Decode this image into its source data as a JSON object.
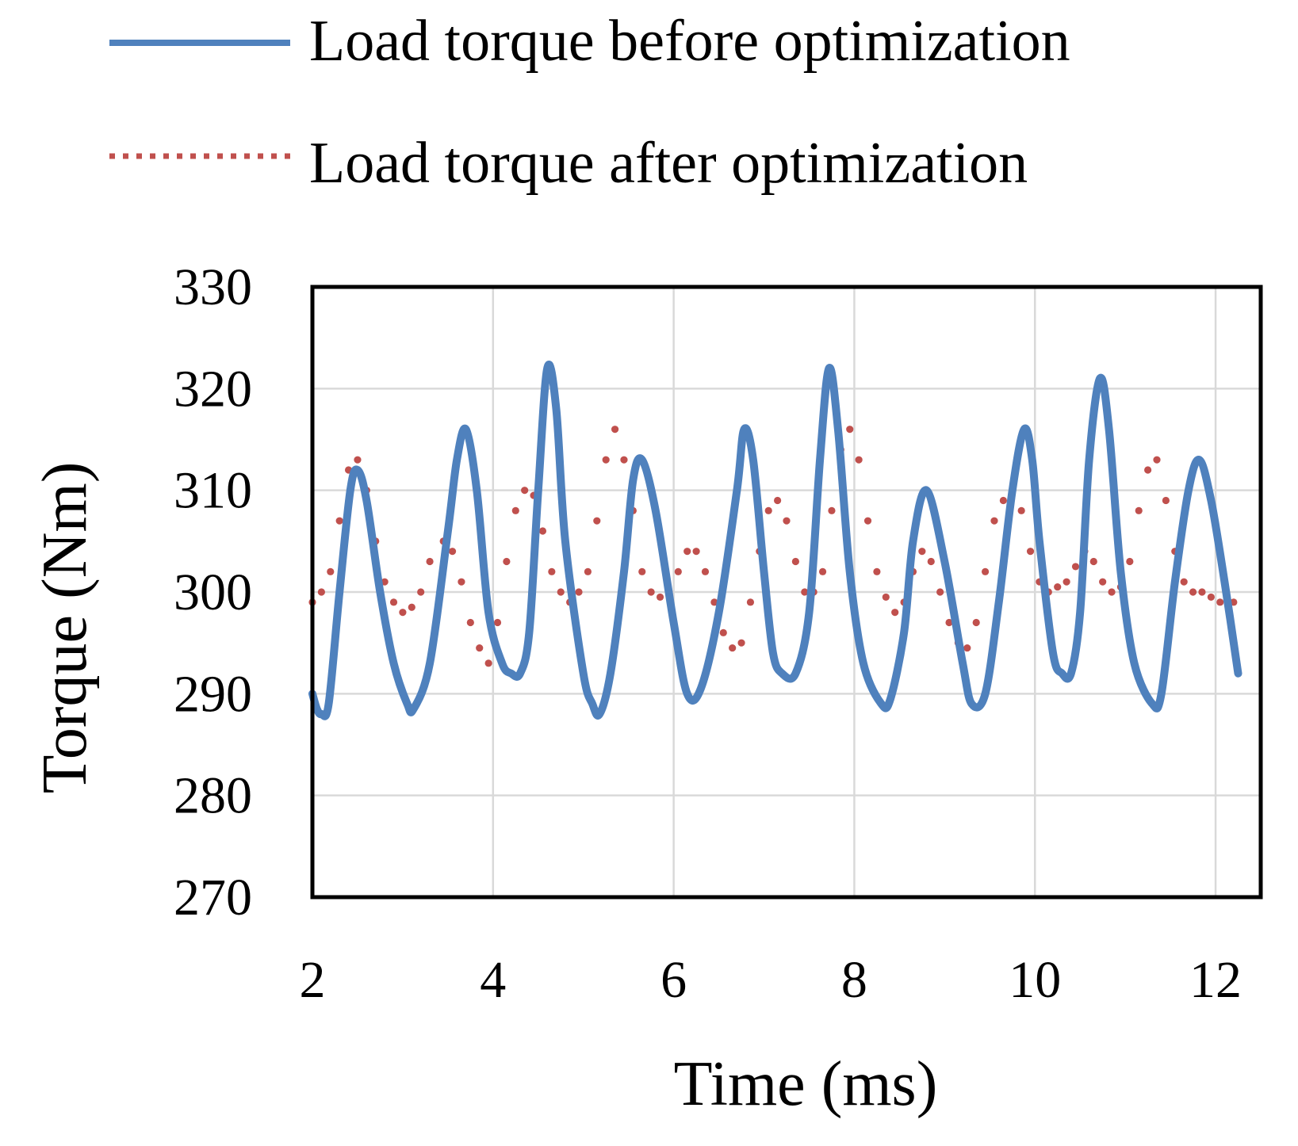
{
  "chart_data": {
    "type": "line",
    "title": "",
    "xlabel": "Time (ms)",
    "ylabel": "Torque (Nm)",
    "xlim": [
      2,
      12.5
    ],
    "ylim": [
      270,
      330
    ],
    "xticks": [
      2,
      4,
      6,
      8,
      10,
      12
    ],
    "yticks": [
      270,
      280,
      290,
      300,
      310,
      320,
      330
    ],
    "grid": true,
    "legend_position": "top",
    "series": [
      {
        "name": "Load torque before optimization",
        "style": "solid",
        "color": "#4F81BD",
        "x": [
          2.0,
          2.05,
          2.1,
          2.18,
          2.3,
          2.42,
          2.5,
          2.6,
          2.75,
          2.9,
          3.05,
          3.12,
          3.3,
          3.5,
          3.6,
          3.7,
          3.82,
          3.95,
          4.1,
          4.2,
          4.3,
          4.4,
          4.5,
          4.6,
          4.7,
          4.8,
          5.0,
          5.1,
          5.18,
          5.3,
          5.45,
          5.55,
          5.65,
          5.8,
          6.0,
          6.15,
          6.3,
          6.5,
          6.7,
          6.78,
          6.88,
          7.0,
          7.1,
          7.2,
          7.35,
          7.5,
          7.62,
          7.72,
          7.82,
          7.95,
          8.1,
          8.3,
          8.4,
          8.55,
          8.65,
          8.8,
          9.0,
          9.2,
          9.3,
          9.45,
          9.6,
          9.75,
          9.88,
          9.97,
          10.05,
          10.2,
          10.3,
          10.4,
          10.5,
          10.6,
          10.72,
          10.82,
          10.95,
          11.1,
          11.3,
          11.4,
          11.55,
          11.7,
          11.82,
          11.95,
          12.1,
          12.25
        ],
        "values": [
          290,
          288.5,
          288,
          289,
          300,
          310,
          312,
          309,
          300,
          293,
          289,
          288.5,
          293,
          306,
          313,
          316,
          310,
          298,
          293,
          292,
          292,
          296,
          310,
          322,
          318,
          305,
          292,
          289,
          288,
          292,
          302,
          311,
          313,
          308,
          297,
          290,
          290.5,
          298,
          310,
          316,
          313,
          302,
          294,
          292,
          292,
          298,
          313,
          322,
          316,
          302,
          293,
          289,
          289.5,
          296,
          305,
          310,
          303,
          293,
          289,
          290,
          299,
          310,
          316,
          313,
          305,
          294,
          292,
          292,
          298,
          313,
          321,
          316,
          302,
          293,
          289,
          290,
          301,
          310,
          313,
          309,
          301,
          292
        ]
      },
      {
        "name": "Load torque after optimization",
        "style": "dotted",
        "color": "#C0504D",
        "x": [
          2.0,
          2.1,
          2.2,
          2.3,
          2.4,
          2.5,
          2.6,
          2.7,
          2.8,
          2.9,
          3.0,
          3.1,
          3.2,
          3.3,
          3.45,
          3.55,
          3.65,
          3.75,
          3.85,
          3.95,
          4.05,
          4.15,
          4.25,
          4.35,
          4.45,
          4.55,
          4.65,
          4.75,
          4.85,
          4.95,
          5.05,
          5.15,
          5.25,
          5.35,
          5.45,
          5.55,
          5.65,
          5.75,
          5.85,
          5.95,
          6.05,
          6.15,
          6.25,
          6.35,
          6.45,
          6.55,
          6.65,
          6.75,
          6.85,
          6.95,
          7.05,
          7.15,
          7.25,
          7.35,
          7.45,
          7.55,
          7.65,
          7.75,
          7.85,
          7.95,
          8.05,
          8.15,
          8.25,
          8.35,
          8.45,
          8.55,
          8.65,
          8.75,
          8.85,
          8.95,
          9.05,
          9.15,
          9.25,
          9.35,
          9.45,
          9.55,
          9.65,
          9.75,
          9.85,
          9.95,
          10.05,
          10.15,
          10.25,
          10.35,
          10.45,
          10.55,
          10.65,
          10.75,
          10.85,
          10.95,
          11.05,
          11.15,
          11.25,
          11.35,
          11.45,
          11.55,
          11.65,
          11.75,
          11.85,
          11.95,
          12.05,
          12.15,
          12.2
        ],
        "values": [
          299,
          300,
          302,
          307,
          312,
          313,
          310,
          305,
          301,
          299,
          298,
          298.5,
          300,
          303,
          305,
          304,
          301,
          297,
          294.5,
          293,
          297,
          303,
          308,
          310,
          309.5,
          306,
          302,
          300,
          299,
          300,
          302,
          307,
          313,
          316,
          313,
          308,
          302,
          300,
          299.5,
          300,
          302,
          304,
          304,
          302,
          299,
          296,
          294.5,
          295,
          299,
          304,
          308,
          309,
          307,
          303,
          300,
          300,
          302,
          308,
          314,
          316,
          313,
          307,
          302,
          299.5,
          298,
          299,
          302,
          304,
          303,
          300,
          297,
          295,
          294.5,
          297,
          302,
          307,
          309,
          310,
          308,
          304,
          301,
          300,
          300.5,
          301,
          302.5,
          304,
          303,
          301,
          300,
          300.5,
          303,
          308,
          312,
          313,
          309,
          304,
          301,
          300,
          300,
          299.5,
          299,
          299,
          299
        ]
      }
    ]
  }
}
